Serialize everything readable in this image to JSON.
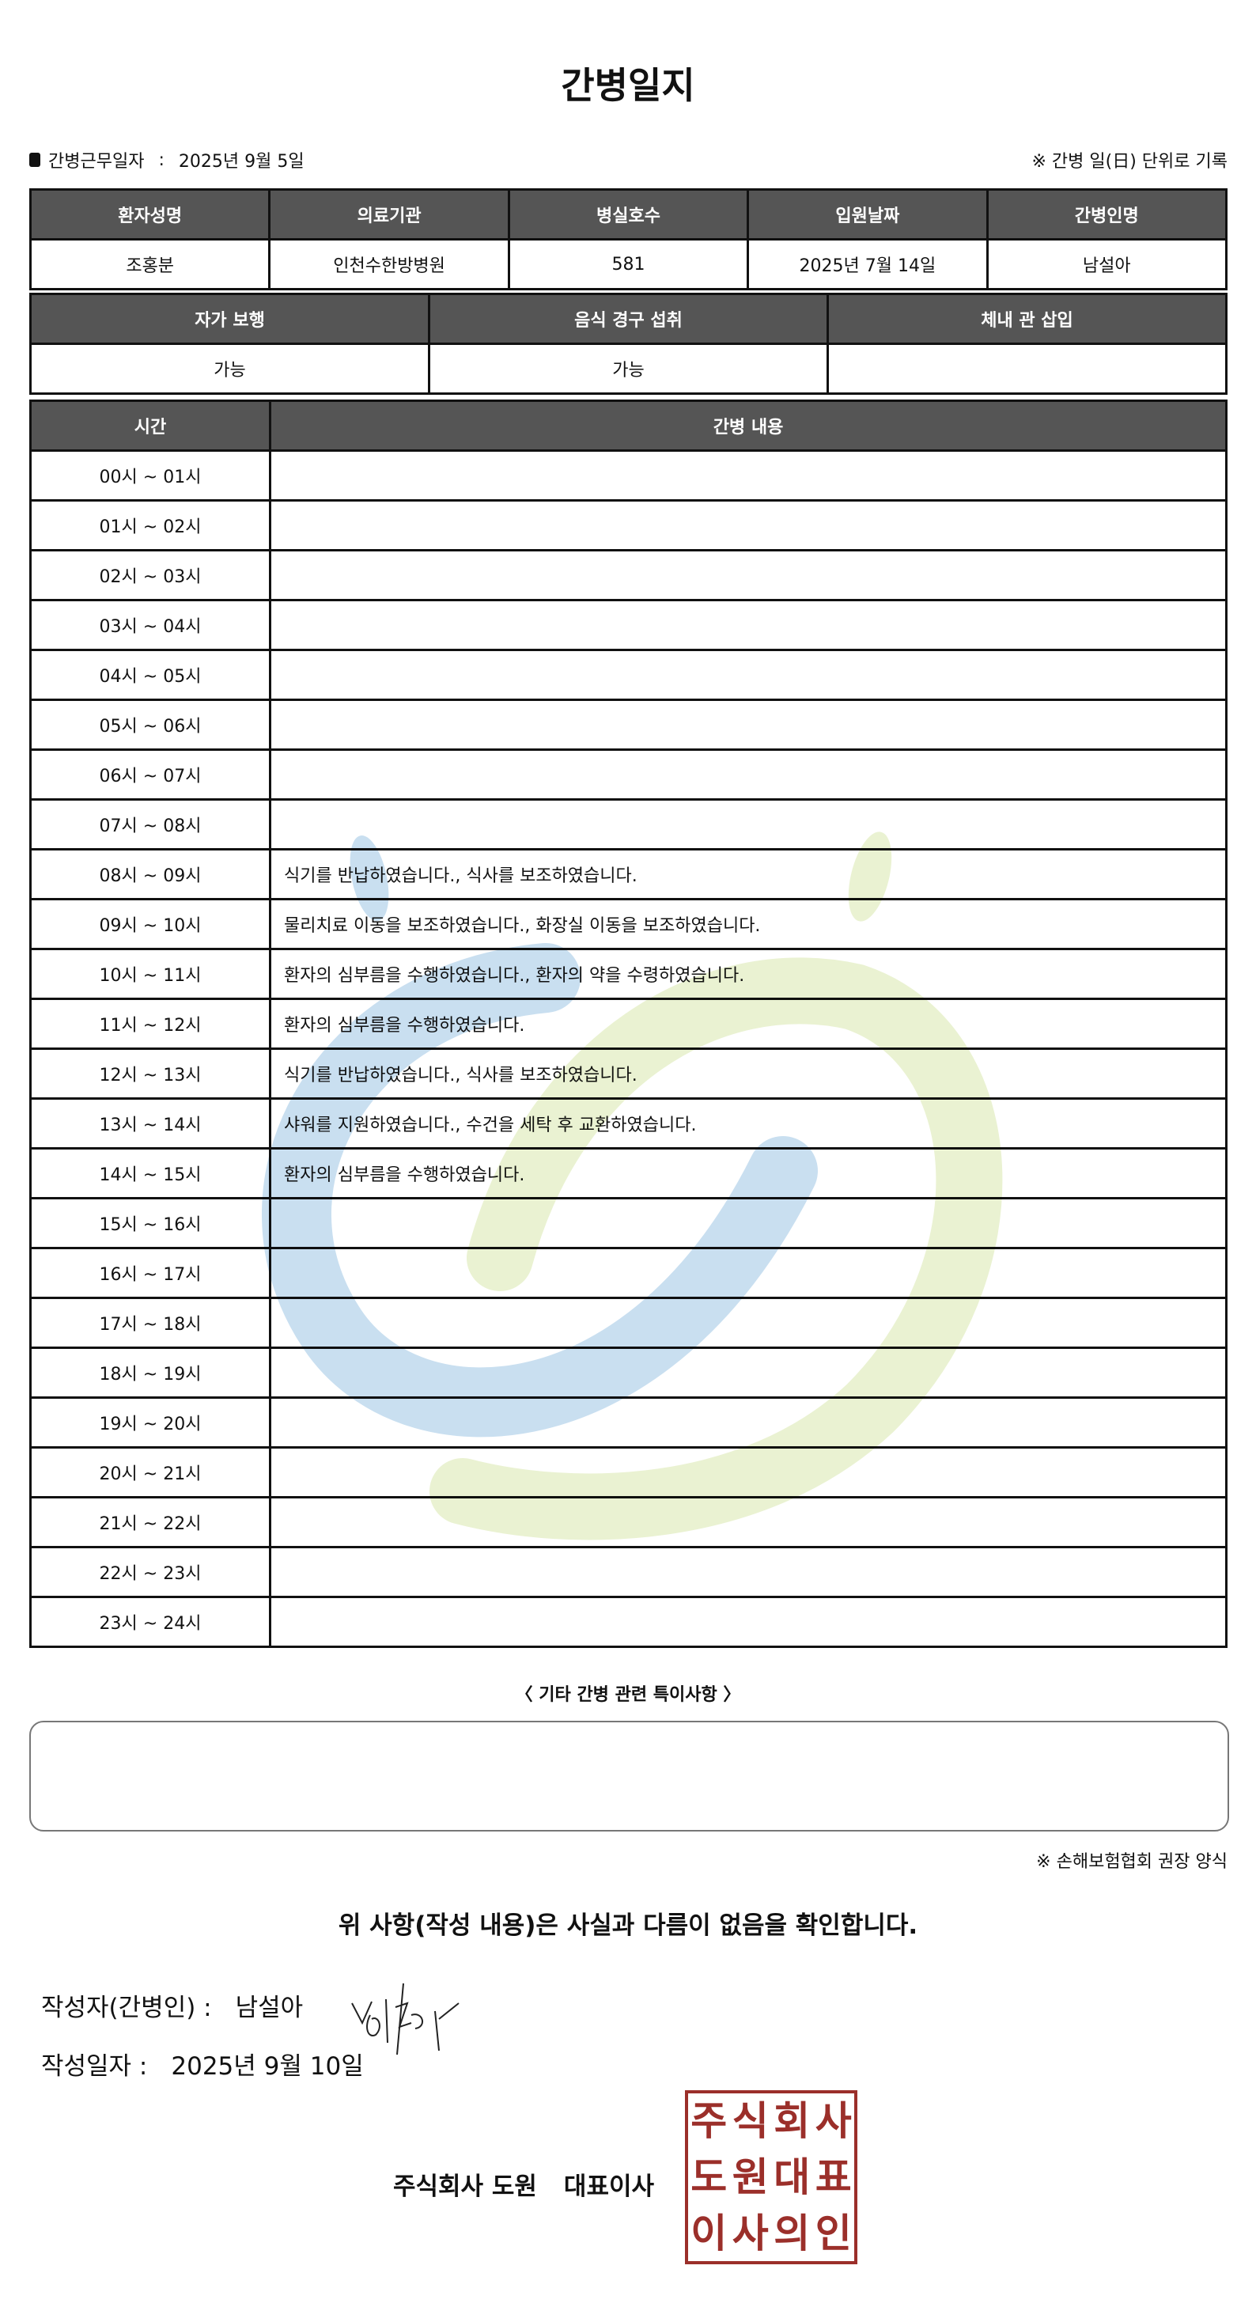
{
  "title": "간병일지",
  "work_date_label": "간병근무일자",
  "work_date_sep": ":",
  "work_date": "2025년 9월 5일",
  "record_note": "※ 간병 일(日) 단위로 기록",
  "patient_table": {
    "headers": [
      "환자성명",
      "의료기관",
      "병실호수",
      "입원날짜",
      "간병인명"
    ],
    "values": [
      "조홍분",
      "인천수한방병원",
      "581",
      "2025년 7월 14일",
      "남설아"
    ]
  },
  "status_table": {
    "headers": [
      "자가 보행",
      "음식 경구 섭취",
      "체내 관 삽입"
    ],
    "values": [
      "가능",
      "가능",
      ""
    ]
  },
  "log_table": {
    "headers": [
      "시간",
      "간병 내용"
    ],
    "rows": [
      {
        "time": "00시 ~ 01시",
        "content": ""
      },
      {
        "time": "01시 ~ 02시",
        "content": ""
      },
      {
        "time": "02시 ~ 03시",
        "content": ""
      },
      {
        "time": "03시 ~ 04시",
        "content": ""
      },
      {
        "time": "04시 ~ 05시",
        "content": ""
      },
      {
        "time": "05시 ~ 06시",
        "content": ""
      },
      {
        "time": "06시 ~ 07시",
        "content": ""
      },
      {
        "time": "07시 ~ 08시",
        "content": ""
      },
      {
        "time": "08시 ~ 09시",
        "content": "식기를 반납하였습니다., 식사를 보조하였습니다."
      },
      {
        "time": "09시 ~ 10시",
        "content": "물리치료 이동을 보조하였습니다., 화장실 이동을 보조하였습니다."
      },
      {
        "time": "10시 ~ 11시",
        "content": "환자의 심부름을 수행하였습니다., 환자의 약을 수령하였습니다."
      },
      {
        "time": "11시 ~ 12시",
        "content": "환자의 심부름을 수행하였습니다."
      },
      {
        "time": "12시 ~ 13시",
        "content": "식기를 반납하였습니다., 식사를 보조하였습니다."
      },
      {
        "time": "13시 ~ 14시",
        "content": "샤워를 지원하였습니다., 수건을 세탁 후 교환하였습니다."
      },
      {
        "time": "14시 ~ 15시",
        "content": "환자의 심부름을 수행하였습니다."
      },
      {
        "time": "15시 ~ 16시",
        "content": ""
      },
      {
        "time": "16시 ~ 17시",
        "content": ""
      },
      {
        "time": "17시 ~ 18시",
        "content": ""
      },
      {
        "time": "18시 ~ 19시",
        "content": ""
      },
      {
        "time": "19시 ~ 20시",
        "content": ""
      },
      {
        "time": "20시 ~ 21시",
        "content": ""
      },
      {
        "time": "21시 ~ 22시",
        "content": ""
      },
      {
        "time": "22시 ~ 23시",
        "content": ""
      },
      {
        "time": "23시 ~ 24시",
        "content": ""
      }
    ]
  },
  "special_notes_label": "〈 기타 간병 관련 특이사항 〉",
  "special_notes": "",
  "association_note": "※ 손해보험협회 권장 양식",
  "confirmation": "위 사항(작성 내용)은 사실과 다름이 없음을 확인합니다.",
  "writer_label": "작성자(간병인) :",
  "writer_name": "남설아",
  "written_date_label": "작성일자 :",
  "written_date": "2025년 9월 10일",
  "company_name": "주식회사 도원",
  "company_title": "대표이사",
  "stamp_text": [
    "주",
    "식",
    "회",
    "사",
    "도",
    "원",
    "대",
    "표",
    "이",
    "사",
    "의",
    "인"
  ],
  "colors": {
    "header_bg": "#555555",
    "stamp": "#9b2f2a",
    "watermark_blue": "#c9dff0",
    "watermark_yellow": "#eaf2d2"
  }
}
